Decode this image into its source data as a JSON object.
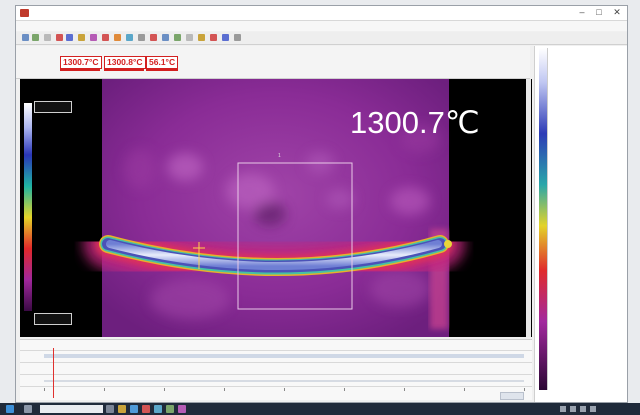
{
  "window": {
    "title": ""
  },
  "menu": [
    {
      "label": ""
    },
    {
      "label": ""
    },
    {
      "label": ""
    },
    {
      "label": ""
    },
    {
      "label": ""
    },
    {
      "label": ""
    }
  ],
  "readouts": [
    {
      "label": "",
      "value": "1300.7°C"
    },
    {
      "label": "",
      "value": "1300.8°C"
    },
    {
      "label": "",
      "value": "56.1°C"
    }
  ],
  "viewer": {
    "max_temp_overlay": "1300.7℃",
    "scale_top": "",
    "scale_bottom": "",
    "roi_label": "1",
    "spot_label": ""
  },
  "colors": {
    "background_magenta": "#8a2c96",
    "hot_core": "#dfe4f7",
    "readout_red": "#d32020",
    "taskbar": "#1f2a3a"
  },
  "timeline": {
    "rows": [
      {
        "label": ""
      },
      {
        "label": ""
      },
      {
        "label": ""
      }
    ]
  },
  "taskbar": {
    "search_placeholder": "",
    "clock": ""
  },
  "icons": [
    "app-icon",
    "minimize-icon",
    "maximize-icon",
    "close-icon",
    "windows-start-icon",
    "search-icon",
    "taskview-icon"
  ]
}
